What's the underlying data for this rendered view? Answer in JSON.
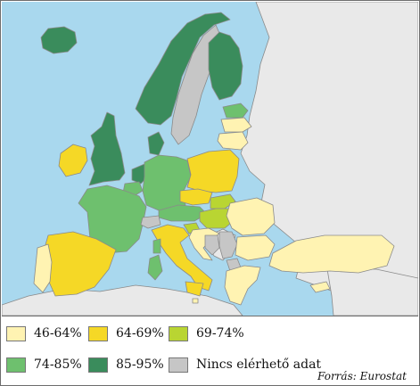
{
  "legend": {
    "items": [
      {
        "label": "46-64%",
        "color": "#fff3b2"
      },
      {
        "label": "64-69%",
        "color": "#f5d826"
      },
      {
        "label": "69-74%",
        "color": "#b9d532"
      },
      {
        "label": "74-85%",
        "color": "#6ec06e"
      },
      {
        "label": "85-95%",
        "color": "#3a8c5c"
      },
      {
        "label": "Nincs elérhető adat",
        "color": "#c6c6c6"
      }
    ]
  },
  "source": "Forrás: Eurostat",
  "colors": {
    "sea": "#a9d8ee",
    "non_eu_land": "#e9e9e9"
  },
  "regions": [
    {
      "name": "Iceland",
      "category": 4
    },
    {
      "name": "Norway",
      "category": 4
    },
    {
      "name": "Sweden",
      "category": 5
    },
    {
      "name": "Finland",
      "category": 4
    },
    {
      "name": "Estonia",
      "category": 3
    },
    {
      "name": "Latvia",
      "category": 0
    },
    {
      "name": "Lithuania",
      "category": 0
    },
    {
      "name": "United Kingdom",
      "category": 4
    },
    {
      "name": "Ireland",
      "category": 1
    },
    {
      "name": "Denmark",
      "category": 4
    },
    {
      "name": "Netherlands",
      "category": 4
    },
    {
      "name": "Belgium",
      "category": 3
    },
    {
      "name": "Germany",
      "category": 3
    },
    {
      "name": "Poland",
      "category": 1
    },
    {
      "name": "France",
      "category": 3
    },
    {
      "name": "Czechia",
      "category": 1
    },
    {
      "name": "Slovakia",
      "category": 2
    },
    {
      "name": "Austria",
      "category": 3
    },
    {
      "name": "Hungary",
      "category": 2
    },
    {
      "name": "Switzerland",
      "category": 5
    },
    {
      "name": "Spain",
      "category": 1
    },
    {
      "name": "Portugal",
      "category": 0
    },
    {
      "name": "Italy",
      "category": 1
    },
    {
      "name": "Slovenia",
      "category": 2
    },
    {
      "name": "Croatia",
      "category": 0
    },
    {
      "name": "Bosnia and Herzegovina",
      "category": 5
    },
    {
      "name": "Serbia",
      "category": 5
    },
    {
      "name": "Romania",
      "category": 0
    },
    {
      "name": "Bulgaria",
      "category": 0
    },
    {
      "name": "North Macedonia",
      "category": 5
    },
    {
      "name": "Greece",
      "category": 0
    },
    {
      "name": "Turkey",
      "category": 0
    },
    {
      "name": "Cyprus",
      "category": 0
    },
    {
      "name": "Malta",
      "category": 0
    },
    {
      "name": "Sardinia",
      "category": 3
    },
    {
      "name": "Corsica",
      "category": 3
    },
    {
      "name": "Sicily",
      "category": 1
    }
  ]
}
